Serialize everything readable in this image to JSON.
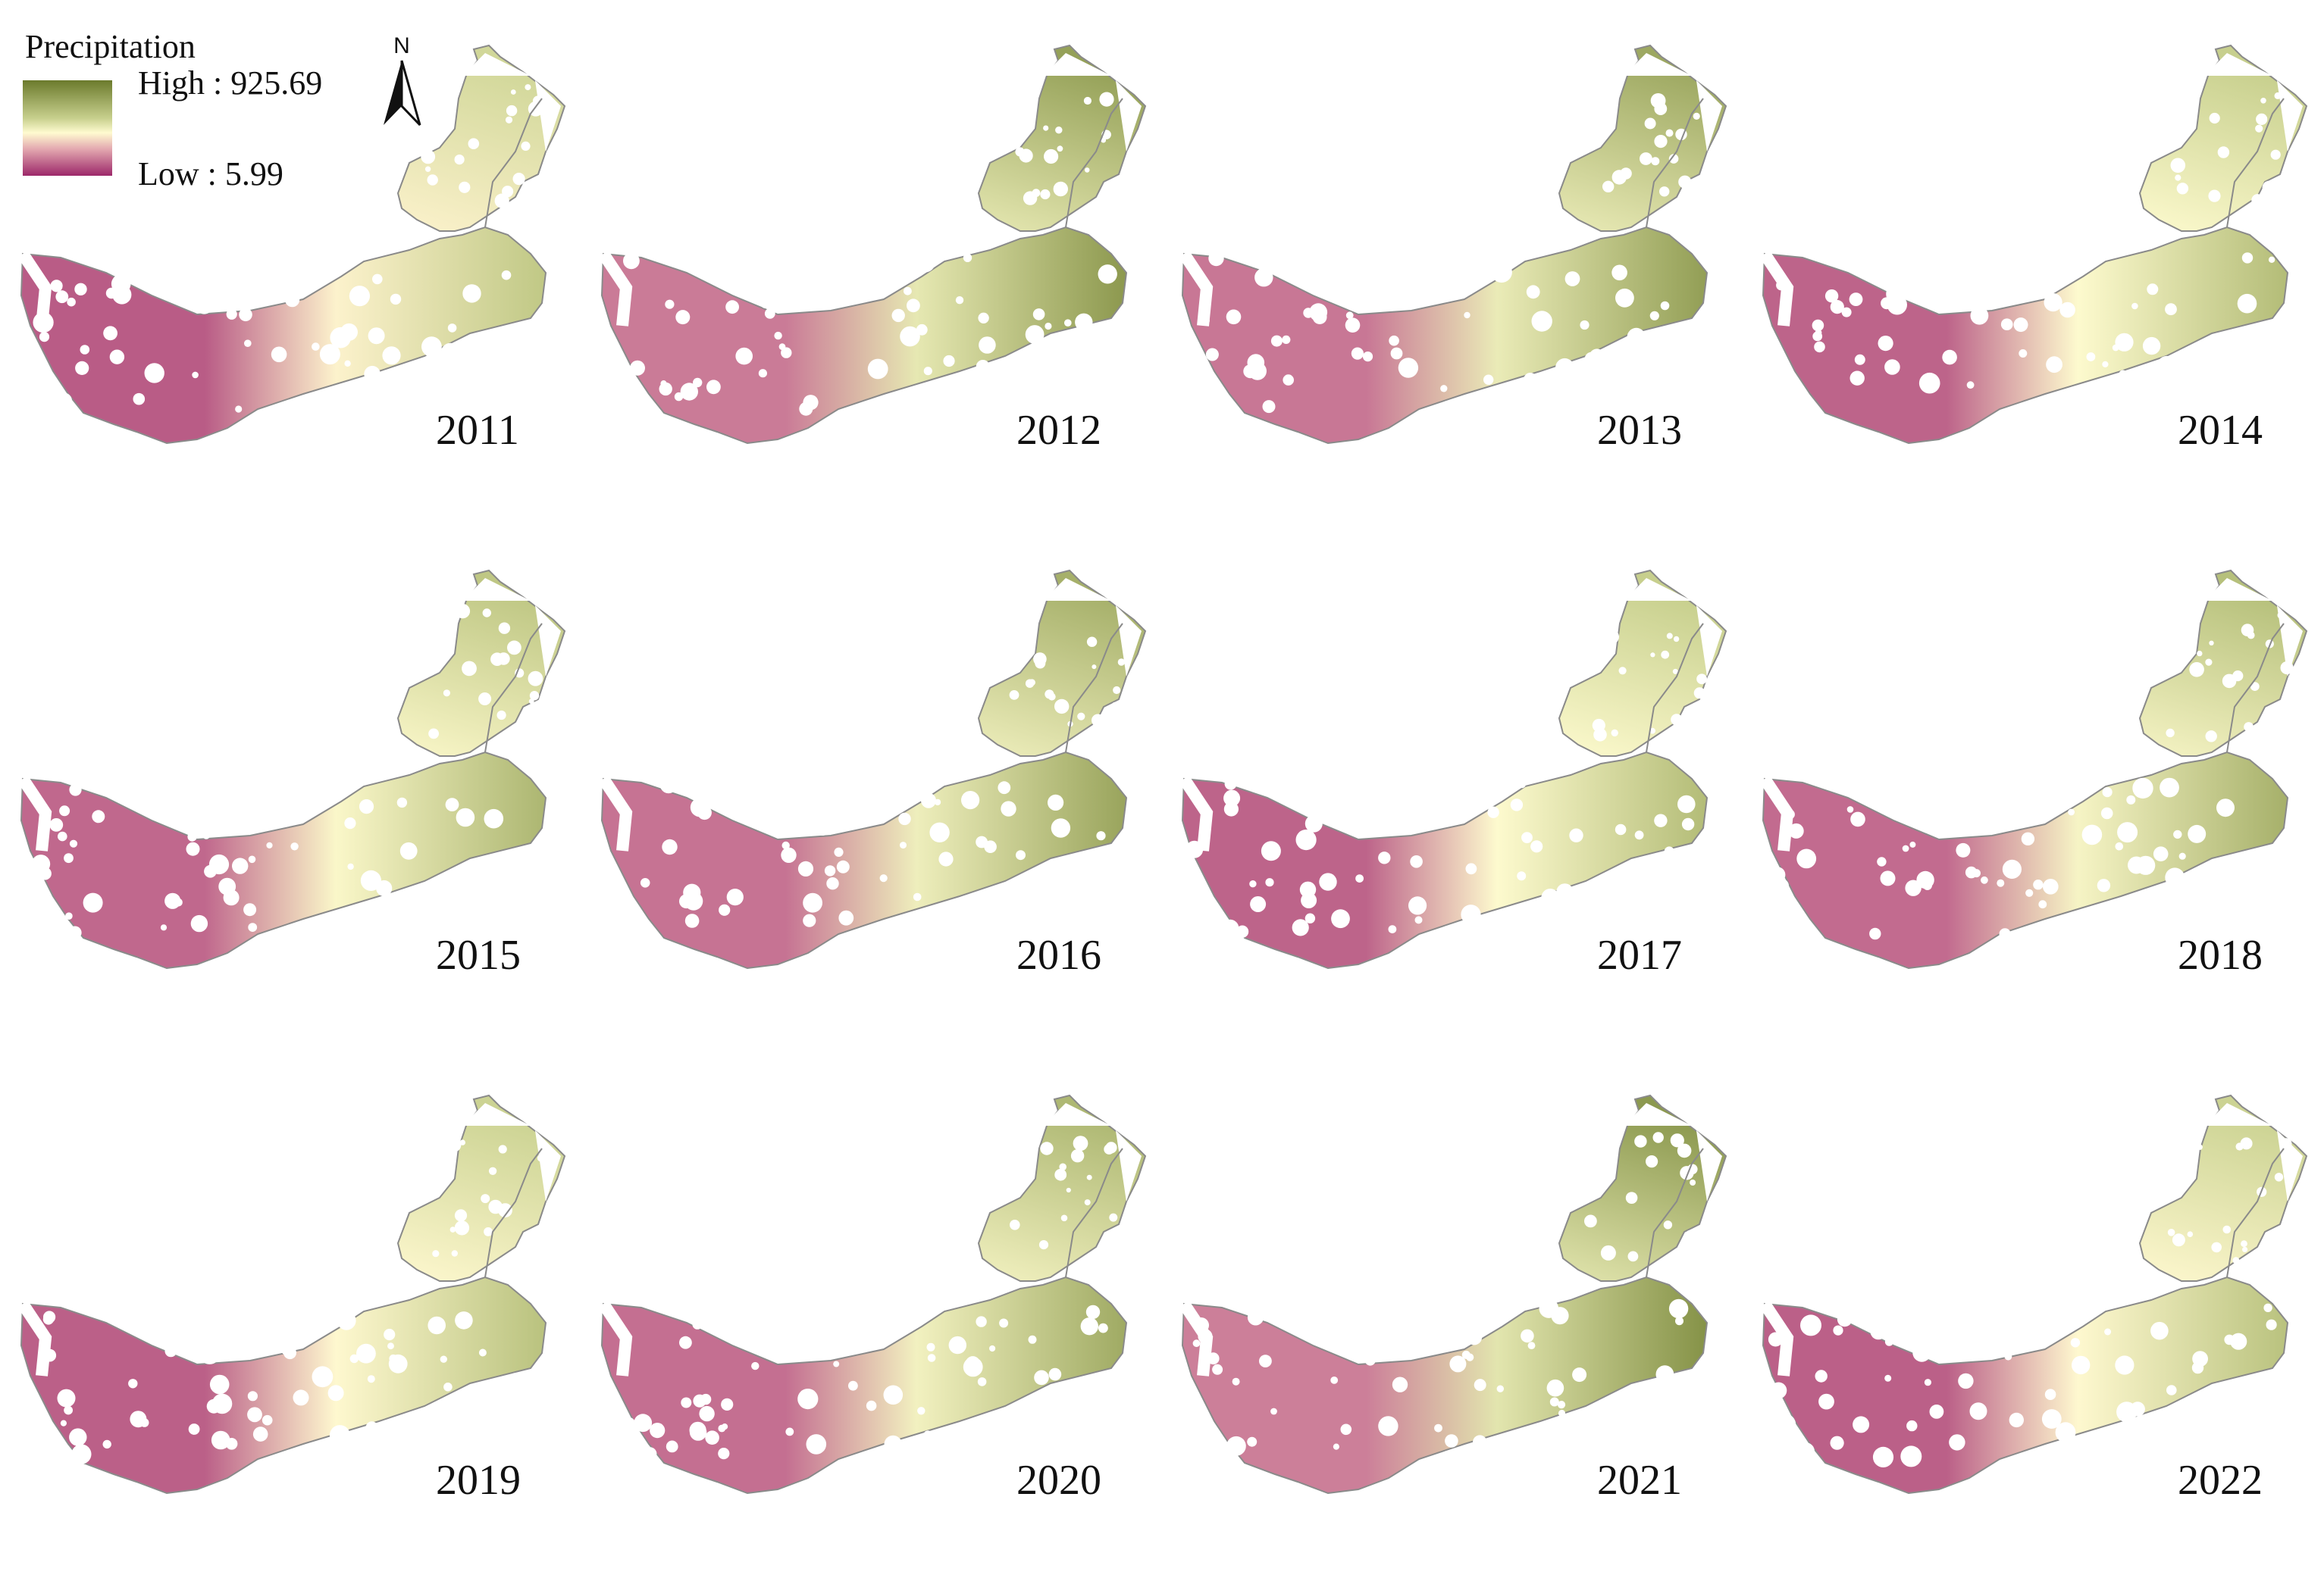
{
  "legend": {
    "title": "Precipitation",
    "high_label": "High : 925.69",
    "low_label": "Low : 5.99",
    "high_value": 925.69,
    "low_value": 5.99,
    "colors": [
      "#6b7a2c",
      "#c8d08e",
      "#fffbd0",
      "#e3a8b0",
      "#9c2769"
    ]
  },
  "north_arrow": {
    "label": "N",
    "icon": "north-arrow-icon"
  },
  "maps": [
    {
      "year": "2011",
      "wetness": 0.35
    },
    {
      "year": "2012",
      "wetness": 0.75
    },
    {
      "year": "2013",
      "wetness": 0.7
    },
    {
      "year": "2014",
      "wetness": 0.45
    },
    {
      "year": "2015",
      "wetness": 0.5
    },
    {
      "year": "2016",
      "wetness": 0.65
    },
    {
      "year": "2017",
      "wetness": 0.45
    },
    {
      "year": "2018",
      "wetness": 0.55
    },
    {
      "year": "2019",
      "wetness": 0.4
    },
    {
      "year": "2020",
      "wetness": 0.6
    },
    {
      "year": "2021",
      "wetness": 0.8
    },
    {
      "year": "2022",
      "wetness": 0.4
    }
  ]
}
